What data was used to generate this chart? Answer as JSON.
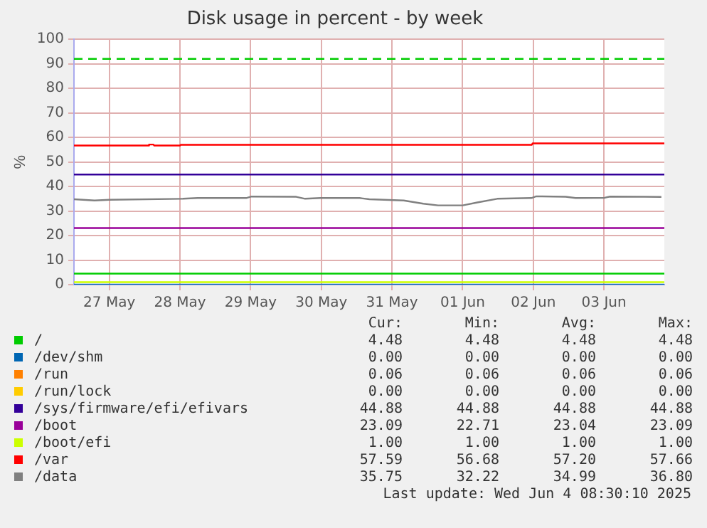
{
  "chart_data": {
    "type": "line",
    "title": "Disk usage in percent - by week",
    "ylabel": "%",
    "xlim": [
      "2025-05-27T00:00",
      "2025-06-04T08:30"
    ],
    "xticks": [
      {
        "value": "2025-05-27T12:00",
        "label": "27 May"
      },
      {
        "value": "2025-05-28T12:00",
        "label": "28 May"
      },
      {
        "value": "2025-05-29T12:00",
        "label": "29 May"
      },
      {
        "value": "2025-05-30T12:00",
        "label": "30 May"
      },
      {
        "value": "2025-05-31T12:00",
        "label": "31 May"
      },
      {
        "value": "2025-06-01T12:00",
        "label": "01 Jun"
      },
      {
        "value": "2025-06-02T12:00",
        "label": "02 Jun"
      },
      {
        "value": "2025-06-03T12:00",
        "label": "03 Jun"
      }
    ],
    "ylim": [
      0,
      100
    ],
    "yticks": [
      0,
      10,
      20,
      30,
      40,
      50,
      60,
      70,
      80,
      90,
      100
    ],
    "grid": true,
    "legend": "bottom",
    "marker": "none",
    "series": [
      {
        "name": "/",
        "color": "#00cc00",
        "x": [
          "2025-05-27T00:00",
          "2025-06-04T08:30"
        ],
        "values": [
          4.48,
          4.48
        ]
      },
      {
        "name": "/dev/shm",
        "color": "#0066b3",
        "x": [
          "2025-05-27T00:00",
          "2025-06-04T08:30"
        ],
        "values": [
          0,
          0
        ]
      },
      {
        "name": "/run",
        "color": "#ff8000",
        "values": [
          null,
          null
        ]
      },
      {
        "name": "/run/lock",
        "color": "#ffcc00",
        "values": [
          null,
          null
        ]
      },
      {
        "name": "/sys/firmware/efi/efivars",
        "color": "#330099",
        "x": [
          "2025-05-27T00:00",
          "2025-06-04T08:30"
        ],
        "values": [
          44.88,
          44.88
        ]
      },
      {
        "name": "/boot",
        "color": "#990099",
        "x": [
          "2025-05-27T00:00",
          "2025-06-04T08:30"
        ],
        "values": [
          23.04,
          23.04
        ]
      },
      {
        "name": "/boot/efi",
        "color": "#ccff00",
        "x": [
          "2025-05-27T00:00",
          "2025-06-04T08:30"
        ],
        "values": [
          1,
          1
        ]
      },
      {
        "name": "/var",
        "color": "#ff0000",
        "x": [
          "2025-05-27T00:00",
          "2025-05-28T01:15",
          "2025-05-28T01:30",
          "2025-05-28T03:00",
          "2025-05-28T03:15",
          "2025-05-28T12:00",
          "2025-05-28T12:15",
          "2025-06-02T11:30",
          "2025-06-02T11:45",
          "2025-06-04T08:30"
        ],
        "values": [
          56.68,
          56.68,
          57.1,
          57.1,
          56.68,
          56.68,
          57.0,
          57.0,
          57.59,
          57.59
        ]
      },
      {
        "name": "/data",
        "color": "#808080",
        "x": [
          "2025-05-27T00:00",
          "2025-05-27T07:00",
          "2025-05-27T12:00",
          "2025-05-28T13:00",
          "2025-05-28T18:00",
          "2025-05-29T10:30",
          "2025-05-29T12:15",
          "2025-05-30T03:30",
          "2025-05-30T06:30",
          "2025-05-30T11:45",
          "2025-05-31T01:00",
          "2025-05-31T04:20",
          "2025-05-31T16:00",
          "2025-05-31T22:40",
          "2025-06-01T03:40",
          "2025-06-01T12:00",
          "2025-06-01T17:00",
          "2025-06-01T23:45",
          "2025-06-02T11:20",
          "2025-06-02T13:00",
          "2025-06-02T23:00",
          "2025-06-03T02:20",
          "2025-06-03T12:15",
          "2025-06-03T14:00",
          "2025-06-04T01:40",
          "2025-06-04T07:30"
        ],
        "values": [
          34.8,
          34.3,
          34.6,
          35.0,
          35.3,
          35.3,
          35.9,
          35.8,
          35.0,
          35.3,
          35.3,
          34.8,
          34.3,
          33.0,
          32.3,
          32.3,
          33.5,
          35.0,
          35.3,
          36.0,
          35.8,
          35.3,
          35.4,
          35.9,
          35.8,
          35.75
        ]
      }
    ],
    "ref_lines": [
      {
        "axis": "y",
        "value": 92,
        "color": "#00cc00",
        "line_style": "dashed"
      }
    ],
    "annotations": [
      "Cur:",
      "Min:",
      "Avg:",
      "Max:",
      "4.48",
      "4.48",
      "4.48",
      "4.48",
      "0.00",
      "0.00",
      "0.00",
      "0.00",
      "0.06",
      "0.06",
      "0.06",
      "0.06",
      "0.00",
      "0.00",
      "0.00",
      "0.00",
      "44.88",
      "44.88",
      "44.88",
      "44.88",
      "23.09",
      "22.71",
      "23.04",
      "23.09",
      "1.00",
      "1.00",
      "1.00",
      "1.00",
      "57.59",
      "56.68",
      "57.20",
      "57.66",
      "35.75",
      "32.22",
      "34.99",
      "36.80",
      "Last update: Wed Jun  4 08:30:10 2025"
    ]
  }
}
